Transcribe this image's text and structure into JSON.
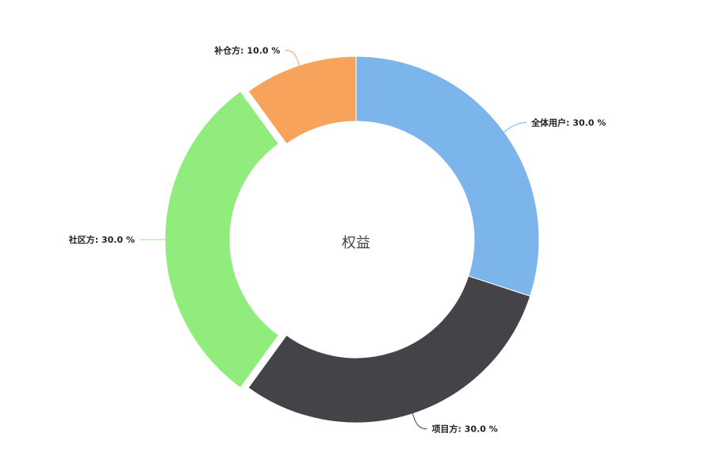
{
  "chart_data": {
    "type": "pie",
    "style": "donut",
    "center_text": "权益",
    "label_format": "name: value %",
    "slices": [
      {
        "name": "全体用户",
        "value": 30.0,
        "label": "全体用户: 30.0 %",
        "color": "#7cb5ec",
        "exploded": false
      },
      {
        "name": "项目方",
        "value": 30.0,
        "label": "项目方: 30.0 %",
        "color": "#434348",
        "exploded": false
      },
      {
        "name": "社区方",
        "value": 30.0,
        "label": "社区方: 30.0 %",
        "color": "#90ed7d",
        "exploded": true
      },
      {
        "name": "补仓方",
        "value": 10.0,
        "label": "补仓方: 10.0 %",
        "color": "#f7a35c",
        "exploded": false
      }
    ],
    "start_angle_deg": 0,
    "direction": "clockwise",
    "legend": "none",
    "data_labels": "outside-with-connectors"
  }
}
